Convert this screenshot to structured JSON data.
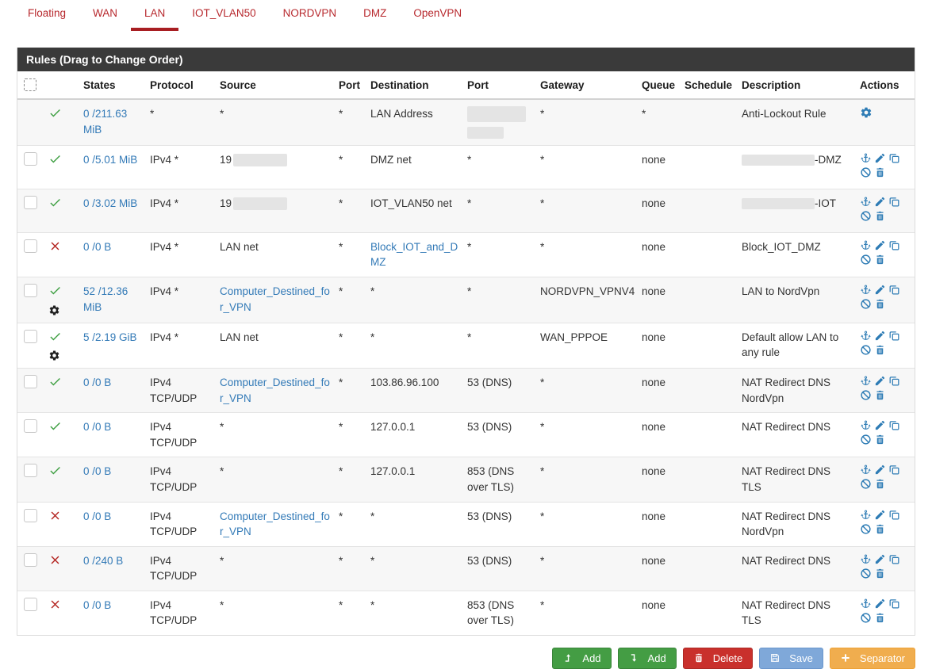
{
  "tabs": [
    {
      "label": "Floating",
      "active": false
    },
    {
      "label": "WAN",
      "active": false
    },
    {
      "label": "LAN",
      "active": true
    },
    {
      "label": "IOT_VLAN50",
      "active": false
    },
    {
      "label": "NORDVPN",
      "active": false
    },
    {
      "label": "DMZ",
      "active": false
    },
    {
      "label": "OpenVPN",
      "active": false
    }
  ],
  "panel": {
    "title": "Rules (Drag to Change Order)"
  },
  "table": {
    "headers": [
      "",
      "",
      "States",
      "Protocol",
      "Source",
      "Port",
      "Destination",
      "Port",
      "Gateway",
      "Queue",
      "Schedule",
      "Description",
      "Actions"
    ]
  },
  "rows": [
    {
      "selectable": false,
      "status": "pass",
      "gear": false,
      "states": "0 /211.63 MiB",
      "protocol": "*",
      "source": {
        "text": "*"
      },
      "srcport": "*",
      "destination": {
        "text": "LAN Address"
      },
      "destport": {
        "redacted": true
      },
      "gateway": "*",
      "queue": "*",
      "schedule": "",
      "description": {
        "text": "Anti-Lockout Rule"
      },
      "actions": "gear"
    },
    {
      "selectable": true,
      "status": "pass",
      "gear": false,
      "states": "0 /5.01 MiB",
      "protocol": "IPv4 *",
      "source": {
        "prefix": "19",
        "redacted": true
      },
      "srcport": "*",
      "destination": {
        "text": "DMZ net"
      },
      "destport": {
        "text": "*"
      },
      "gateway": "*",
      "queue": "none",
      "schedule": "",
      "description": {
        "suffix": "-DMZ",
        "redacted": true
      },
      "actions": "full"
    },
    {
      "selectable": true,
      "status": "pass",
      "gear": false,
      "states": "0 /3.02 MiB",
      "protocol": "IPv4 *",
      "source": {
        "prefix": "19",
        "redacted": true
      },
      "srcport": "*",
      "destination": {
        "text": "IOT_VLAN50 net"
      },
      "destport": {
        "text": "*"
      },
      "gateway": "*",
      "queue": "none",
      "schedule": "",
      "description": {
        "suffix": "-IOT",
        "redacted": true
      },
      "actions": "full"
    },
    {
      "selectable": true,
      "status": "block",
      "gear": false,
      "states": "0 /0 B",
      "protocol": "IPv4 *",
      "source": {
        "text": "LAN net"
      },
      "srcport": "*",
      "destination": {
        "text": "Block_IOT_and_DMZ",
        "link": true
      },
      "destport": {
        "text": "*"
      },
      "gateway": "*",
      "queue": "none",
      "schedule": "",
      "description": {
        "text": "Block_IOT_DMZ"
      },
      "actions": "full"
    },
    {
      "selectable": true,
      "status": "pass",
      "gear": true,
      "states": "52 /12.36 MiB",
      "protocol": "IPv4 *",
      "source": {
        "text": "Computer_Destined_for_VPN",
        "link": true
      },
      "srcport": "*",
      "destination": {
        "text": "*"
      },
      "destport": {
        "text": "*"
      },
      "gateway": "NORDVPN_VPNV4",
      "queue": "none",
      "schedule": "",
      "description": {
        "text": "LAN to NordVpn"
      },
      "actions": "full"
    },
    {
      "selectable": true,
      "status": "pass",
      "gear": true,
      "states": "5 /2.19 GiB",
      "protocol": "IPv4 *",
      "source": {
        "text": "LAN net"
      },
      "srcport": "*",
      "destination": {
        "text": "*"
      },
      "destport": {
        "text": "*"
      },
      "gateway": "WAN_PPPOE",
      "queue": "none",
      "schedule": "",
      "description": {
        "text": "Default allow LAN to any rule"
      },
      "actions": "full"
    },
    {
      "selectable": true,
      "status": "pass",
      "gear": false,
      "states": "0 /0 B",
      "protocol": "IPv4 TCP/UDP",
      "source": {
        "text": "Computer_Destined_for_VPN",
        "link": true
      },
      "srcport": "*",
      "destination": {
        "text": "103.86.96.100"
      },
      "destport": {
        "text": "53 (DNS)"
      },
      "gateway": "*",
      "queue": "none",
      "schedule": "",
      "description": {
        "text": "NAT Redirect DNS NordVpn"
      },
      "actions": "full"
    },
    {
      "selectable": true,
      "status": "pass",
      "gear": false,
      "states": "0 /0 B",
      "protocol": "IPv4 TCP/UDP",
      "source": {
        "text": "*"
      },
      "srcport": "*",
      "destination": {
        "text": "127.0.0.1"
      },
      "destport": {
        "text": "53 (DNS)"
      },
      "gateway": "*",
      "queue": "none",
      "schedule": "",
      "description": {
        "text": "NAT Redirect DNS"
      },
      "actions": "full"
    },
    {
      "selectable": true,
      "status": "pass",
      "gear": false,
      "states": "0 /0 B",
      "protocol": "IPv4 TCP/UDP",
      "source": {
        "text": "*"
      },
      "srcport": "*",
      "destination": {
        "text": "127.0.0.1"
      },
      "destport": {
        "text": "853 (DNS over TLS)"
      },
      "gateway": "*",
      "queue": "none",
      "schedule": "",
      "description": {
        "text": "NAT Redirect DNS TLS"
      },
      "actions": "full"
    },
    {
      "selectable": true,
      "status": "block",
      "gear": false,
      "states": "0 /0 B",
      "protocol": "IPv4 TCP/UDP",
      "source": {
        "text": "Computer_Destined_for_VPN",
        "link": true
      },
      "srcport": "*",
      "destination": {
        "text": "*"
      },
      "destport": {
        "text": "53 (DNS)"
      },
      "gateway": "*",
      "queue": "none",
      "schedule": "",
      "description": {
        "text": "NAT Redirect DNS NordVpn"
      },
      "actions": "full"
    },
    {
      "selectable": true,
      "status": "block",
      "gear": false,
      "states": "0 /240 B",
      "protocol": "IPv4 TCP/UDP",
      "source": {
        "text": "*"
      },
      "srcport": "*",
      "destination": {
        "text": "*"
      },
      "destport": {
        "text": "53 (DNS)"
      },
      "gateway": "*",
      "queue": "none",
      "schedule": "",
      "description": {
        "text": "NAT Redirect DNS"
      },
      "actions": "full"
    },
    {
      "selectable": true,
      "status": "block",
      "gear": false,
      "states": "0 /0 B",
      "protocol": "IPv4 TCP/UDP",
      "source": {
        "text": "*"
      },
      "srcport": "*",
      "destination": {
        "text": "*"
      },
      "destport": {
        "text": "853 (DNS over TLS)"
      },
      "gateway": "*",
      "queue": "none",
      "schedule": "",
      "description": {
        "text": "NAT Redirect DNS TLS"
      },
      "actions": "full"
    }
  ],
  "footer": {
    "buttons": [
      {
        "label": "Add",
        "icon": "level-up",
        "style": "success",
        "name": "add-top-button"
      },
      {
        "label": "Add",
        "icon": "level-down",
        "style": "success",
        "name": "add-bottom-button"
      },
      {
        "label": "Delete",
        "icon": "trash",
        "style": "danger",
        "name": "delete-button"
      },
      {
        "label": "Save",
        "icon": "save",
        "style": "primary",
        "name": "save-button"
      },
      {
        "label": "Separator",
        "icon": "plus",
        "style": "warning",
        "name": "separator-button"
      }
    ]
  },
  "colors": {
    "tab_red": "#b7282d",
    "tab_underline_red": "#a81e22",
    "link_blue": "#337ab7",
    "action_icon_blue": "#2e7cb5",
    "check_green": "#3c9e40",
    "cross_red": "#b3231f",
    "panel_header_bg": "#3a3a3a",
    "button_green": "#449d44",
    "button_red": "#c9302c",
    "button_blue": "#7fa8d9",
    "button_orange": "#f0ad4e"
  }
}
